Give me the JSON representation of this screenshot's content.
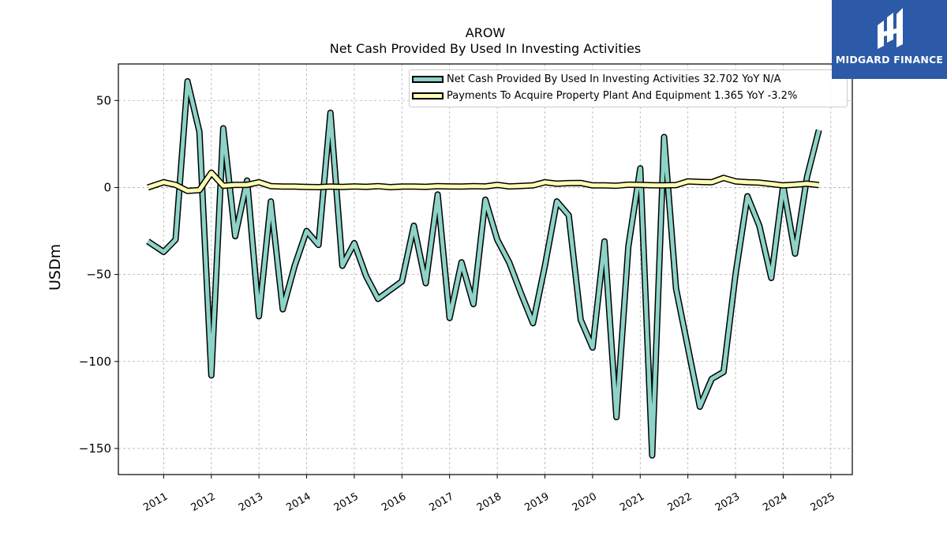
{
  "chart_data": {
    "type": "line",
    "title": "AROW",
    "subtitle": "Net Cash Provided By Used In Investing Activities",
    "xlabel": "",
    "ylabel": "USDm",
    "ylim": [
      -165,
      71
    ],
    "xlim": [
      2010.05,
      2025.45
    ],
    "yticks": [
      50,
      0,
      -50,
      -100,
      -150
    ],
    "ytick_labels": [
      "50",
      "0",
      "−50",
      "−100",
      "−150"
    ],
    "xticks": [
      2011,
      2012,
      2013,
      2014,
      2015,
      2016,
      2017,
      2018,
      2019,
      2020,
      2021,
      2022,
      2023,
      2024,
      2025
    ],
    "xtick_labels": [
      "2011",
      "2012",
      "2013",
      "2014",
      "2015",
      "2016",
      "2017",
      "2018",
      "2019",
      "2020",
      "2021",
      "2022",
      "2023",
      "2024",
      "2025"
    ],
    "grid": true,
    "legend_position": "top-right",
    "series": [
      {
        "name": "Net Cash Provided By Used In Investing Activities",
        "legend_label": "Net Cash Provided By Used In Investing Activities  32.702 YoY N/A",
        "color": "#8dd3c7",
        "x": [
          2010.67,
          2011.0,
          2011.25,
          2011.5,
          2011.75,
          2012.0,
          2012.25,
          2012.5,
          2012.75,
          2013.0,
          2013.25,
          2013.5,
          2013.75,
          2014.0,
          2014.25,
          2014.5,
          2014.75,
          2015.0,
          2015.25,
          2015.5,
          2015.75,
          2016.0,
          2016.25,
          2016.5,
          2016.75,
          2017.0,
          2017.25,
          2017.5,
          2017.75,
          2018.0,
          2018.25,
          2018.5,
          2018.75,
          2019.0,
          2019.25,
          2019.5,
          2019.75,
          2020.0,
          2020.25,
          2020.5,
          2020.75,
          2021.0,
          2021.25,
          2021.5,
          2021.75,
          2022.0,
          2022.25,
          2022.5,
          2022.75,
          2023.0,
          2023.25,
          2023.5,
          2023.75,
          2024.0,
          2024.25,
          2024.5,
          2024.75
        ],
        "values": [
          -31,
          -37,
          -30,
          61,
          32,
          -108,
          34,
          -28,
          4,
          -74,
          -8,
          -70,
          -45,
          -25,
          -33,
          43,
          -45,
          -32,
          -51,
          -64,
          -59,
          -54,
          -22,
          -55,
          -4,
          -75,
          -43,
          -67,
          -7,
          -30,
          -43,
          -61,
          -78,
          -45,
          -8,
          -16,
          -76,
          -92,
          -31,
          -132,
          -34,
          11,
          -154,
          29,
          -58,
          -92,
          -126,
          -110,
          -106,
          -50,
          -5,
          -22,
          -52,
          1,
          -38,
          6,
          33
        ]
      },
      {
        "name": "Payments To Acquire Property Plant And Equipment",
        "legend_label": "Payments To Acquire Property Plant And Equipment  1.365 YoY -3.2%",
        "color": "#ffffb3",
        "x": [
          2010.67,
          2011.0,
          2011.25,
          2011.5,
          2011.75,
          2012.0,
          2012.25,
          2012.5,
          2012.75,
          2013.0,
          2013.25,
          2013.5,
          2013.75,
          2014.0,
          2014.25,
          2014.5,
          2014.75,
          2015.0,
          2015.25,
          2015.5,
          2015.75,
          2016.0,
          2016.25,
          2016.5,
          2016.75,
          2017.0,
          2017.25,
          2017.5,
          2017.75,
          2018.0,
          2018.25,
          2018.5,
          2018.75,
          2019.0,
          2019.25,
          2019.5,
          2019.75,
          2020.0,
          2020.25,
          2020.5,
          2020.75,
          2021.0,
          2021.25,
          2021.5,
          2021.75,
          2022.0,
          2022.25,
          2022.5,
          2022.75,
          2023.0,
          2023.25,
          2023.5,
          2023.75,
          2024.0,
          2024.25,
          2024.5,
          2024.75
        ],
        "values": [
          0,
          3,
          1.5,
          -2,
          -1.5,
          8.5,
          1,
          1.5,
          1.5,
          3,
          0.8,
          0.5,
          0.5,
          0.3,
          0.2,
          0.5,
          0.3,
          0.6,
          0.4,
          0.8,
          0.2,
          0.5,
          0.5,
          0.4,
          0.8,
          0.6,
          0.5,
          0.8,
          0.6,
          1.5,
          0.6,
          0.9,
          1.2,
          3,
          2.2,
          2.5,
          2.6,
          1.2,
          1.2,
          1.0,
          1.6,
          1.5,
          1.3,
          1.2,
          1.4,
          3.5,
          3.2,
          3.0,
          5.5,
          3.5,
          3.0,
          2.8,
          2.0,
          1.2,
          1.6,
          2.2,
          1.4
        ]
      }
    ]
  },
  "logo": {
    "text": "MIDGARD FINANCE",
    "color": "#2c5aa8"
  }
}
